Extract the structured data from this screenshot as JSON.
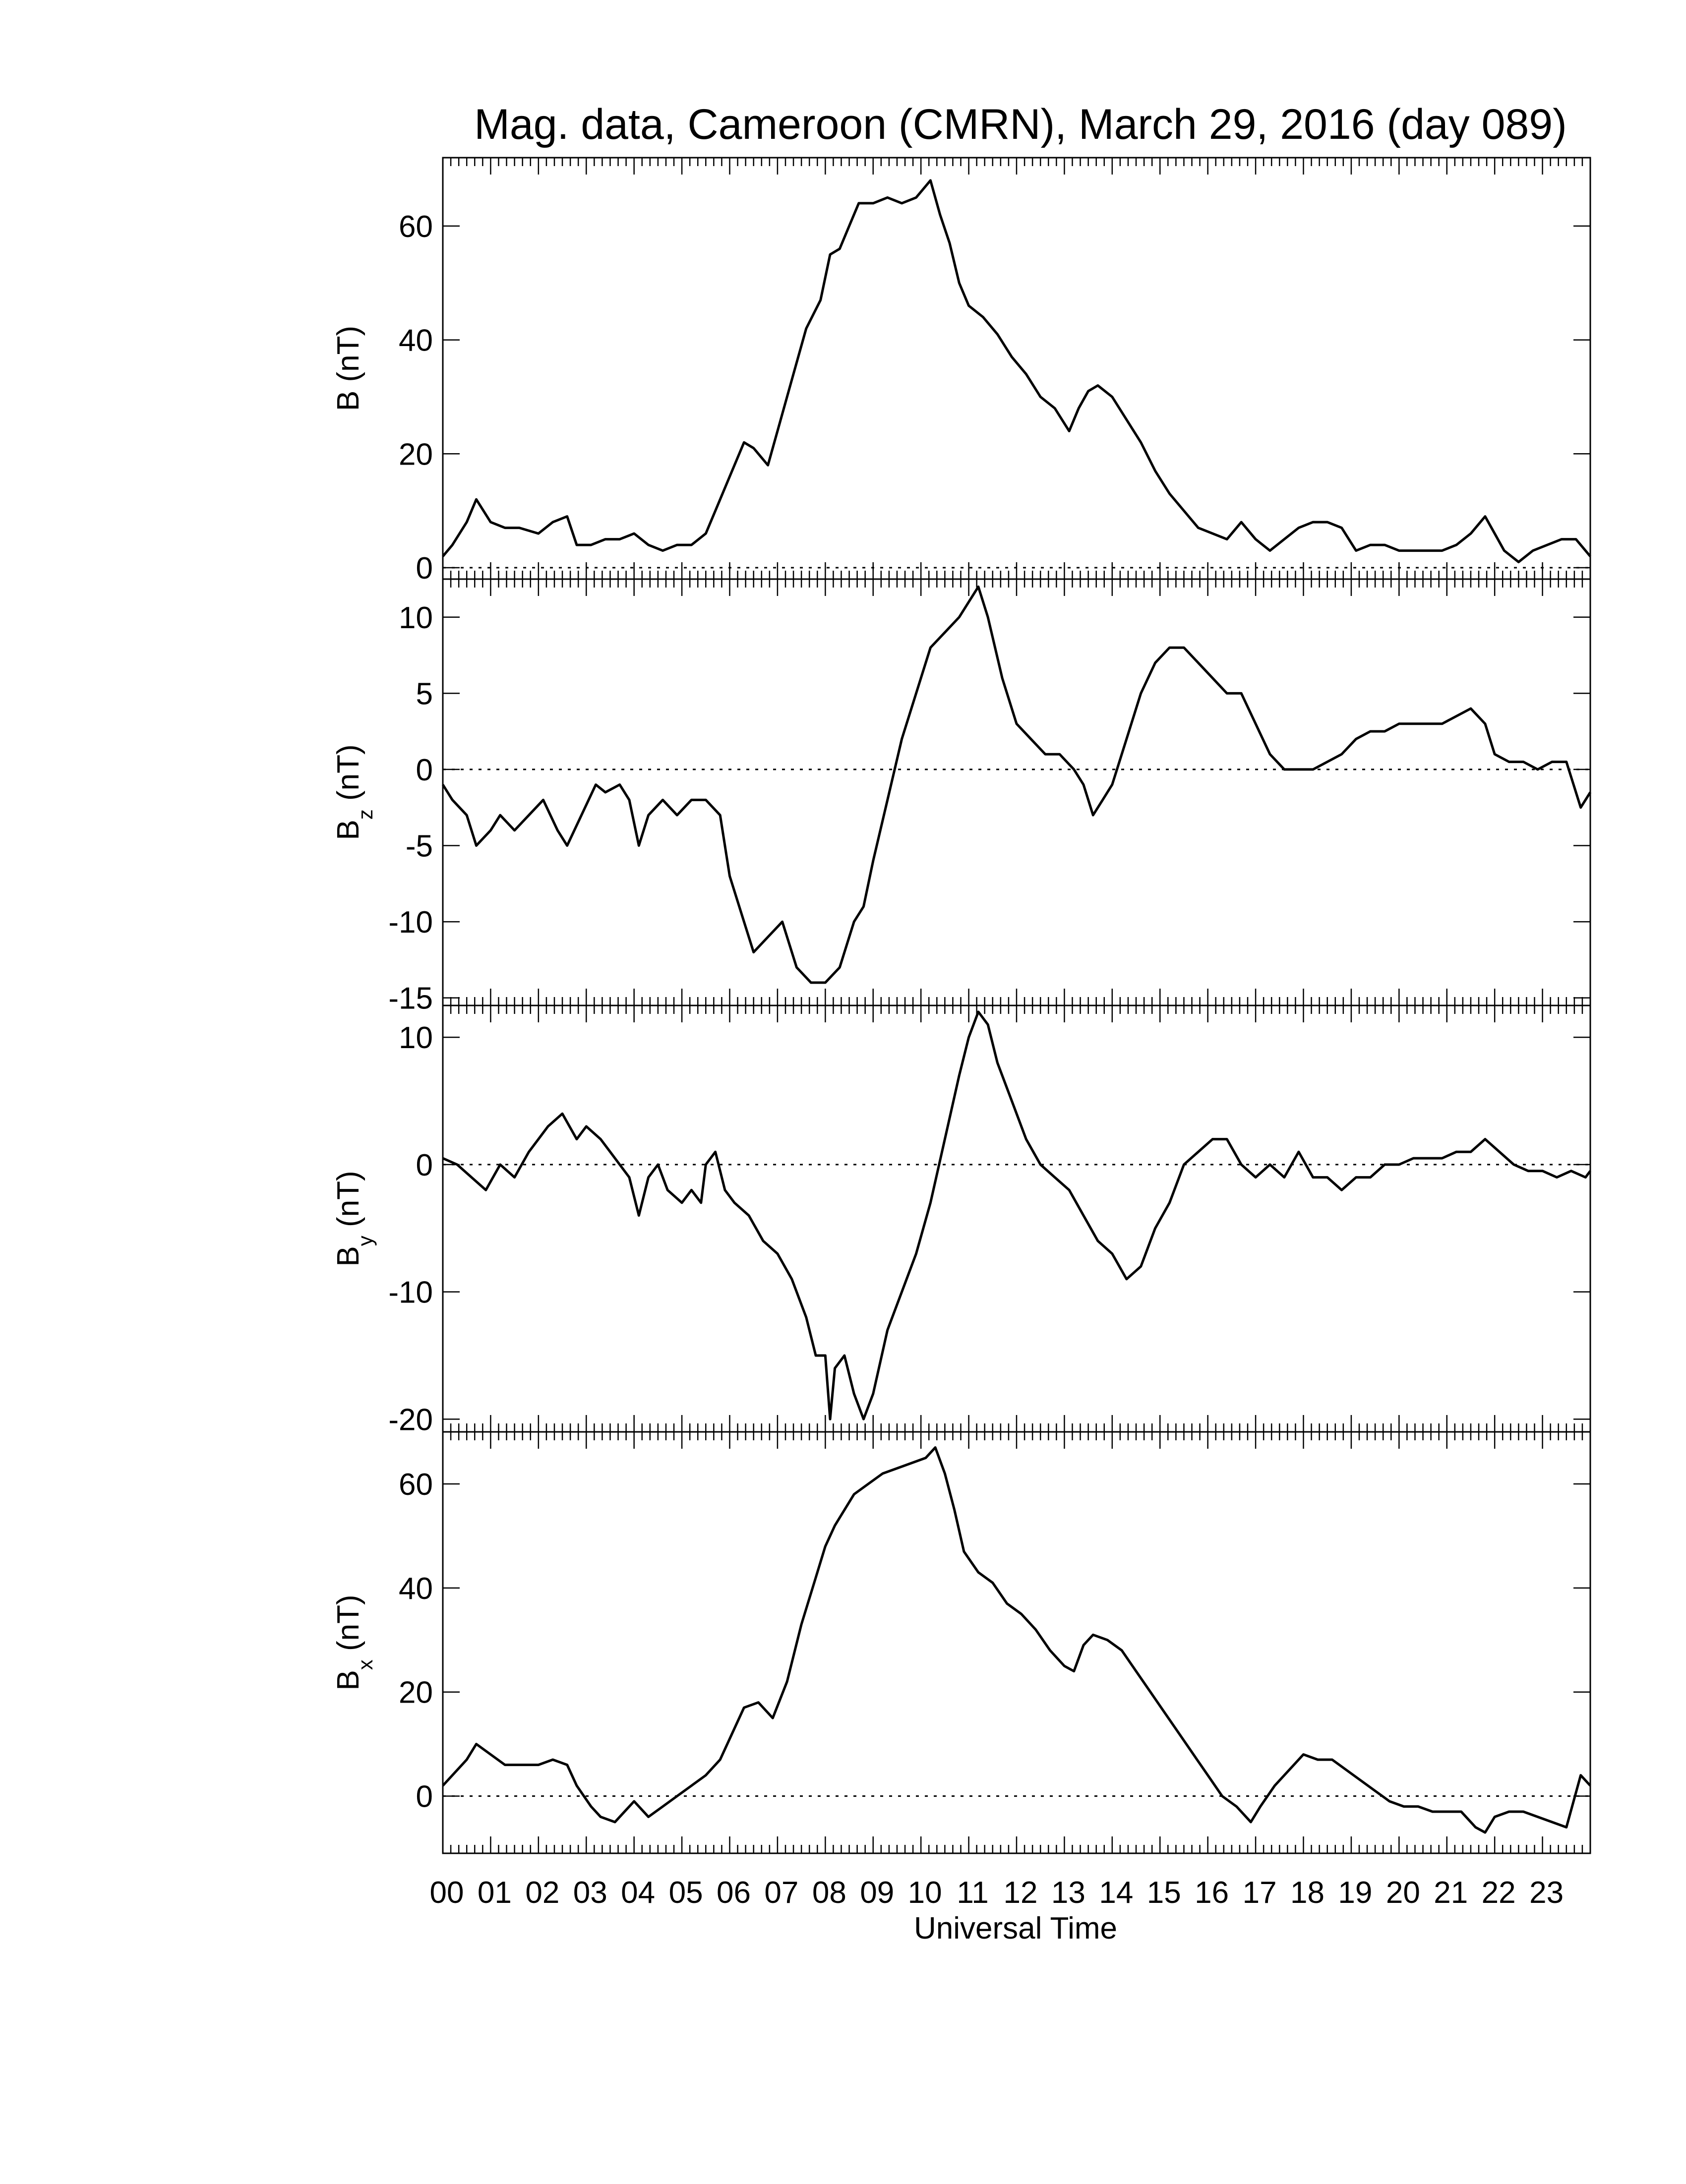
{
  "chart_data": {
    "type": "line",
    "title": "Mag. data, Cameroon (CMRN), March 29, 2016 (day 089)",
    "xlabel": "Universal Time",
    "xlim": [
      0,
      24
    ],
    "x_tick_labels": [
      "00",
      "01",
      "02",
      "03",
      "04",
      "05",
      "06",
      "07",
      "08",
      "09",
      "10",
      "11",
      "12",
      "13",
      "14",
      "15",
      "16",
      "17",
      "18",
      "19",
      "20",
      "21",
      "22",
      "23"
    ],
    "panels": [
      {
        "ylabel_main": "B",
        "ylabel_sub": "",
        "ylabel_unit": "(nT)",
        "ylim": [
          -2,
          72
        ],
        "yticks": [
          0,
          20,
          40,
          60
        ],
        "zero_line": true,
        "series": [
          {
            "x": [
              0,
              0.2,
              0.5,
              0.7,
              1.0,
              1.3,
              1.6,
              2.0,
              2.3,
              2.6,
              2.8,
              3.1,
              3.4,
              3.7,
              4.0,
              4.3,
              4.6,
              4.9,
              5.2,
              5.5,
              5.7,
              6.0,
              6.3,
              6.5,
              6.8,
              7.0,
              7.3,
              7.6,
              7.9,
              8.1,
              8.3,
              8.5,
              8.7,
              9.0,
              9.3,
              9.6,
              9.9,
              10.2,
              10.4,
              10.6,
              10.8,
              11.0,
              11.3,
              11.6,
              11.9,
              12.2,
              12.5,
              12.8,
              13.1,
              13.3,
              13.5,
              13.7,
              14.0,
              14.3,
              14.6,
              14.9,
              15.2,
              15.5,
              15.8,
              16.1,
              16.4,
              16.7,
              17.0,
              17.3,
              17.6,
              17.9,
              18.2,
              18.5,
              18.8,
              19.1,
              19.4,
              19.7,
              20.0,
              20.3,
              20.6,
              20.9,
              21.2,
              21.5,
              21.8,
              22.0,
              22.2,
              22.5,
              22.8,
              23.1,
              23.4,
              23.7,
              24.0
            ],
            "values": [
              2,
              4,
              8,
              12,
              8,
              7,
              7,
              6,
              8,
              9,
              4,
              4,
              5,
              5,
              6,
              4,
              3,
              4,
              4,
              6,
              10,
              16,
              22,
              21,
              18,
              24,
              33,
              42,
              47,
              55,
              56,
              60,
              64,
              64,
              65,
              64,
              65,
              68,
              62,
              57,
              50,
              46,
              44,
              41,
              37,
              34,
              30,
              28,
              24,
              28,
              31,
              32,
              30,
              26,
              22,
              17,
              13,
              10,
              7,
              6,
              5,
              8,
              5,
              3,
              5,
              7,
              8,
              8,
              7,
              3,
              4,
              4,
              3,
              3,
              3,
              3,
              4,
              6,
              9,
              6,
              3,
              1,
              3,
              4,
              5,
              5,
              2
            ]
          }
        ]
      },
      {
        "ylabel_main": "B",
        "ylabel_sub": "z",
        "ylabel_unit": "(nT)",
        "ylim": [
          -15.5,
          12.5
        ],
        "yticks": [
          10,
          5,
          0,
          -5,
          -10,
          -15
        ],
        "zero_line": true,
        "series": [
          {
            "x": [
              0,
              0.2,
              0.5,
              0.7,
              1.0,
              1.2,
              1.5,
              1.8,
              2.1,
              2.4,
              2.6,
              2.9,
              3.2,
              3.4,
              3.7,
              3.9,
              4.1,
              4.3,
              4.6,
              4.9,
              5.2,
              5.5,
              5.8,
              6.0,
              6.3,
              6.5,
              6.8,
              7.1,
              7.4,
              7.7,
              8.0,
              8.3,
              8.6,
              8.8,
              9.0,
              9.3,
              9.6,
              9.9,
              10.2,
              10.5,
              10.8,
              11.0,
              11.2,
              11.4,
              11.7,
              12.0,
              12.3,
              12.6,
              12.9,
              13.2,
              13.4,
              13.6,
              13.8,
              14.0,
              14.3,
              14.6,
              14.9,
              15.2,
              15.5,
              15.8,
              16.1,
              16.4,
              16.7,
              17.0,
              17.3,
              17.6,
              17.9,
              18.2,
              18.5,
              18.8,
              19.1,
              19.4,
              19.7,
              20.0,
              20.3,
              20.6,
              20.9,
              21.2,
              21.5,
              21.8,
              22.0,
              22.3,
              22.6,
              22.9,
              23.2,
              23.5,
              23.8,
              24.0
            ],
            "values": [
              -1,
              -2,
              -3,
              -5,
              -4,
              -3,
              -4,
              -3,
              -2,
              -4,
              -5,
              -3,
              -1,
              -1.5,
              -1,
              -2,
              -5,
              -3,
              -2,
              -3,
              -2,
              -2,
              -3,
              -7,
              -10,
              -12,
              -11,
              -10,
              -13,
              -14,
              -14,
              -13,
              -10,
              -9,
              -6,
              -2,
              2,
              5,
              8,
              9,
              10,
              11,
              12,
              10,
              6,
              3,
              2,
              1,
              1,
              0,
              -1,
              -3,
              -2,
              -1,
              2,
              5,
              7,
              8,
              8,
              7,
              6,
              5,
              5,
              3,
              1,
              0,
              0,
              0,
              0.5,
              1,
              2,
              2.5,
              2.5,
              3,
              3,
              3,
              3,
              3.5,
              4,
              3,
              1,
              0.5,
              0.5,
              0,
              0.5,
              0.5,
              -2.5,
              -1.5
            ]
          }
        ]
      },
      {
        "ylabel_main": "B",
        "ylabel_sub": "y",
        "ylabel_unit": "(nT)",
        "ylim": [
          -21,
          12.5
        ],
        "yticks": [
          10,
          0,
          -10,
          -20
        ],
        "zero_line": true,
        "series": [
          {
            "x": [
              0,
              0.3,
              0.6,
              0.9,
              1.2,
              1.5,
              1.8,
              2.0,
              2.2,
              2.5,
              2.8,
              3.0,
              3.3,
              3.5,
              3.7,
              3.9,
              4.1,
              4.3,
              4.5,
              4.7,
              5.0,
              5.2,
              5.4,
              5.5,
              5.7,
              5.9,
              6.1,
              6.4,
              6.7,
              7.0,
              7.3,
              7.6,
              7.8,
              8.0,
              8.1,
              8.2,
              8.4,
              8.6,
              8.8,
              9.0,
              9.3,
              9.6,
              9.9,
              10.2,
              10.5,
              10.8,
              11.0,
              11.2,
              11.4,
              11.6,
              11.9,
              12.2,
              12.5,
              12.8,
              13.1,
              13.4,
              13.7,
              14.0,
              14.3,
              14.6,
              14.9,
              15.2,
              15.5,
              15.8,
              16.1,
              16.4,
              16.7,
              17.0,
              17.3,
              17.6,
              17.9,
              18.2,
              18.5,
              18.8,
              19.1,
              19.4,
              19.7,
              20.0,
              20.3,
              20.6,
              20.9,
              21.2,
              21.5,
              21.8,
              22.1,
              22.4,
              22.7,
              23.0,
              23.3,
              23.6,
              23.9,
              24.0
            ],
            "values": [
              0.5,
              0,
              -1,
              -2,
              0,
              -1,
              1,
              2,
              3,
              4,
              2,
              3,
              2,
              1,
              0,
              -1,
              -4,
              -1,
              0,
              -2,
              -3,
              -2,
              -3,
              0,
              1,
              -2,
              -3,
              -4,
              -6,
              -7,
              -9,
              -12,
              -15,
              -15,
              -20,
              -16,
              -15,
              -18,
              -20,
              -18,
              -13,
              -10,
              -7,
              -3,
              2,
              7,
              10,
              12,
              11,
              8,
              5,
              2,
              0,
              -1,
              -2,
              -4,
              -6,
              -7,
              -9,
              -8,
              -5,
              -3,
              0,
              1,
              2,
              2,
              0,
              -1,
              0,
              -1,
              1,
              -1,
              -1,
              -2,
              -1,
              -1,
              0,
              0,
              0.5,
              0.5,
              0.5,
              1,
              1,
              2,
              1,
              0,
              -0.5,
              -0.5,
              -1,
              -0.5,
              -1,
              -0.5
            ]
          }
        ]
      },
      {
        "ylabel_main": "B",
        "ylabel_sub": "x",
        "ylabel_unit": "(nT)",
        "ylim": [
          -11,
          70
        ],
        "yticks": [
          0,
          20,
          40,
          60
        ],
        "zero_line": true,
        "series": [
          {
            "x": [
              0,
              0.2,
              0.5,
              0.7,
              1.0,
              1.3,
              1.6,
              2.0,
              2.3,
              2.6,
              2.8,
              3.1,
              3.3,
              3.6,
              3.8,
              4.0,
              4.3,
              4.6,
              4.9,
              5.2,
              5.5,
              5.8,
              6.0,
              6.3,
              6.6,
              6.9,
              7.2,
              7.5,
              7.8,
              8.0,
              8.2,
              8.4,
              8.6,
              8.9,
              9.2,
              9.5,
              9.8,
              10.1,
              10.3,
              10.5,
              10.7,
              10.9,
              11.2,
              11.5,
              11.8,
              12.1,
              12.4,
              12.7,
              13.0,
              13.2,
              13.4,
              13.6,
              13.9,
              14.2,
              14.5,
              14.8,
              15.1,
              15.4,
              15.7,
              16.0,
              16.3,
              16.6,
              16.9,
              17.1,
              17.4,
              17.7,
              18.0,
              18.3,
              18.6,
              18.9,
              19.2,
              19.5,
              19.8,
              20.1,
              20.4,
              20.7,
              21.0,
              21.3,
              21.6,
              21.8,
              22.0,
              22.3,
              22.6,
              22.9,
              23.2,
              23.5,
              23.8,
              24.0
            ],
            "values": [
              2,
              4,
              7,
              10,
              8,
              6,
              6,
              6,
              7,
              6,
              2,
              -2,
              -4,
              -5,
              -3,
              -1,
              -4,
              -2,
              0,
              2,
              4,
              7,
              11,
              17,
              18,
              15,
              22,
              33,
              42,
              48,
              52,
              55,
              58,
              60,
              62,
              63,
              64,
              65,
              67,
              62,
              55,
              47,
              43,
              41,
              37,
              35,
              32,
              28,
              25,
              24,
              29,
              31,
              30,
              28,
              24,
              20,
              16,
              12,
              8,
              4,
              0,
              -2,
              -5,
              -2,
              2,
              5,
              8,
              7,
              7,
              5,
              3,
              1,
              -1,
              -2,
              -2,
              -3,
              -3,
              -3,
              -6,
              -7,
              -4,
              -3,
              -3,
              -4,
              -5,
              -6,
              4,
              2
            ]
          }
        ]
      }
    ]
  }
}
